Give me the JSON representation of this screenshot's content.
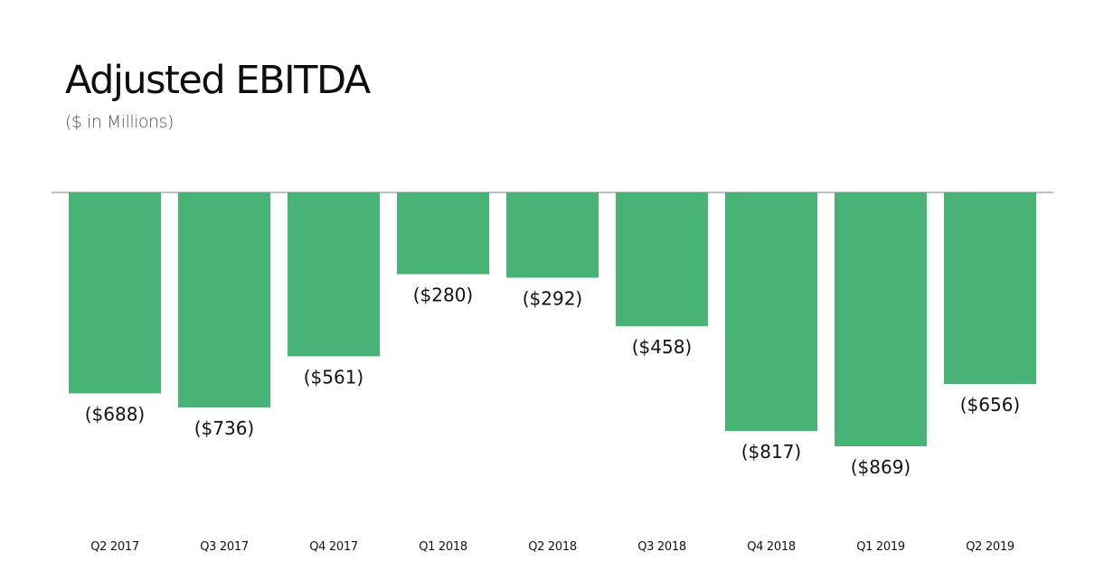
{
  "chart_data": {
    "type": "bar",
    "title": "Adjusted EBITDA",
    "subtitle": "($ in Millions)",
    "xlabel": "",
    "ylabel": "",
    "categories": [
      "Q2 2017",
      "Q3 2017",
      "Q4 2017",
      "Q1 2018",
      "Q2 2018",
      "Q3 2018",
      "Q4 2018",
      "Q1 2019",
      "Q2 2019"
    ],
    "values": [
      -688,
      -736,
      -561,
      -280,
      -292,
      -458,
      -817,
      -869,
      -656
    ],
    "value_labels": [
      "($688)",
      "($736)",
      "($561)",
      "($280)",
      "($292)",
      "($458)",
      "($817)",
      "($869)",
      "($656)"
    ],
    "ylim": [
      -1000,
      0
    ],
    "grid": false,
    "legend": "none",
    "colors": {
      "bar": "#48b374",
      "baseline": "#9a9a9a",
      "text": "#111111"
    }
  }
}
